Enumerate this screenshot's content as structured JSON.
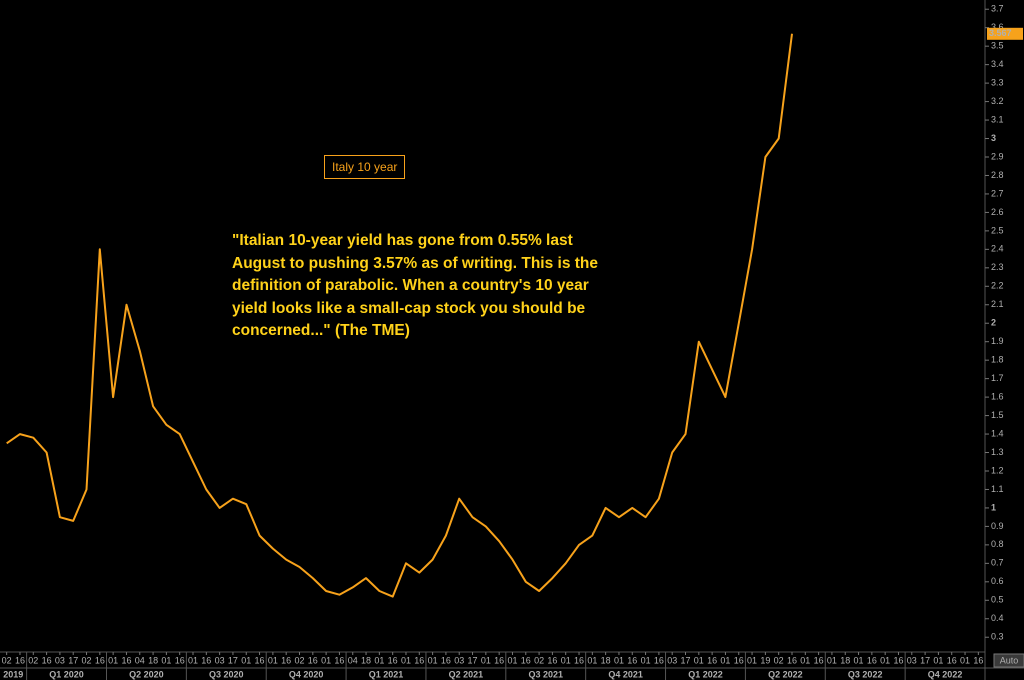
{
  "chart_data": {
    "type": "line",
    "series": [
      {
        "name": "Italy 10 year",
        "color": "#f7a21b",
        "values": [
          1.35,
          1.4,
          1.38,
          1.3,
          0.95,
          0.93,
          1.1,
          2.4,
          1.6,
          2.1,
          1.85,
          1.55,
          1.45,
          1.4,
          1.25,
          1.1,
          1.0,
          1.05,
          1.02,
          0.85,
          0.78,
          0.72,
          0.68,
          0.62,
          0.55,
          0.53,
          0.57,
          0.62,
          0.55,
          0.52,
          0.7,
          0.65,
          0.72,
          0.85,
          1.05,
          0.95,
          0.9,
          0.82,
          0.72,
          0.6,
          0.55,
          0.62,
          0.7,
          0.8,
          0.85,
          1.0,
          0.95,
          1.0,
          0.95,
          1.05,
          1.3,
          1.4,
          1.9,
          1.75,
          1.6,
          2.0,
          2.4,
          2.9,
          3.0,
          3.567,
          null,
          null,
          null,
          null,
          null,
          null,
          null,
          null,
          null,
          null,
          null,
          null,
          null,
          null
        ]
      }
    ],
    "categories": [
      "02",
      "16",
      "02",
      "16",
      "03",
      "17",
      "02",
      "16",
      "01",
      "16",
      "04",
      "18",
      "01",
      "16",
      "01",
      "16",
      "03",
      "17",
      "01",
      "16",
      "01",
      "16",
      "02",
      "16",
      "01",
      "16",
      "04",
      "18",
      "01",
      "16",
      "01",
      "16",
      "01",
      "16",
      "03",
      "17",
      "01",
      "16",
      "01",
      "16",
      "02",
      "16",
      "01",
      "16",
      "01",
      "18",
      "01",
      "16",
      "01",
      "16",
      "03",
      "17",
      "01",
      "16",
      "01",
      "16",
      "01",
      "19",
      "02",
      "16",
      "01",
      "16",
      "01",
      "18",
      "01",
      "16",
      "01",
      "16",
      "03",
      "17",
      "01",
      "16",
      "01",
      "16"
    ],
    "x_groups": [
      "2019",
      "Q1 2020",
      "Q2 2020",
      "Q3 2020",
      "Q4 2020",
      "Q1 2021",
      "Q2 2021",
      "Q3 2021",
      "Q4 2021",
      "Q1 2022",
      "Q2 2022",
      "Q3 2022",
      "Q4 2022"
    ],
    "ylim": [
      0.22,
      3.75
    ],
    "yticks": [
      0.3,
      0.4,
      0.5,
      0.6,
      0.7,
      0.8,
      0.9,
      1,
      1.1,
      1.2,
      1.3,
      1.4,
      1.5,
      1.6,
      1.7,
      1.8,
      1.9,
      2,
      2.1,
      2.2,
      2.3,
      2.4,
      2.5,
      2.6,
      2.7,
      2.8,
      2.9,
      3,
      3.1,
      3.2,
      3.3,
      3.4,
      3.5,
      3.6,
      3.7
    ],
    "last_value": 3.567,
    "annotation": "\"Italian 10-year yield has gone from 0.55% last August to pushing 3.57% as of writing. This is the definition of parabolic. When a country's 10 year yield looks like a small-cap stock you should be concerned...\" (The TME)",
    "axis_button": "Auto"
  }
}
